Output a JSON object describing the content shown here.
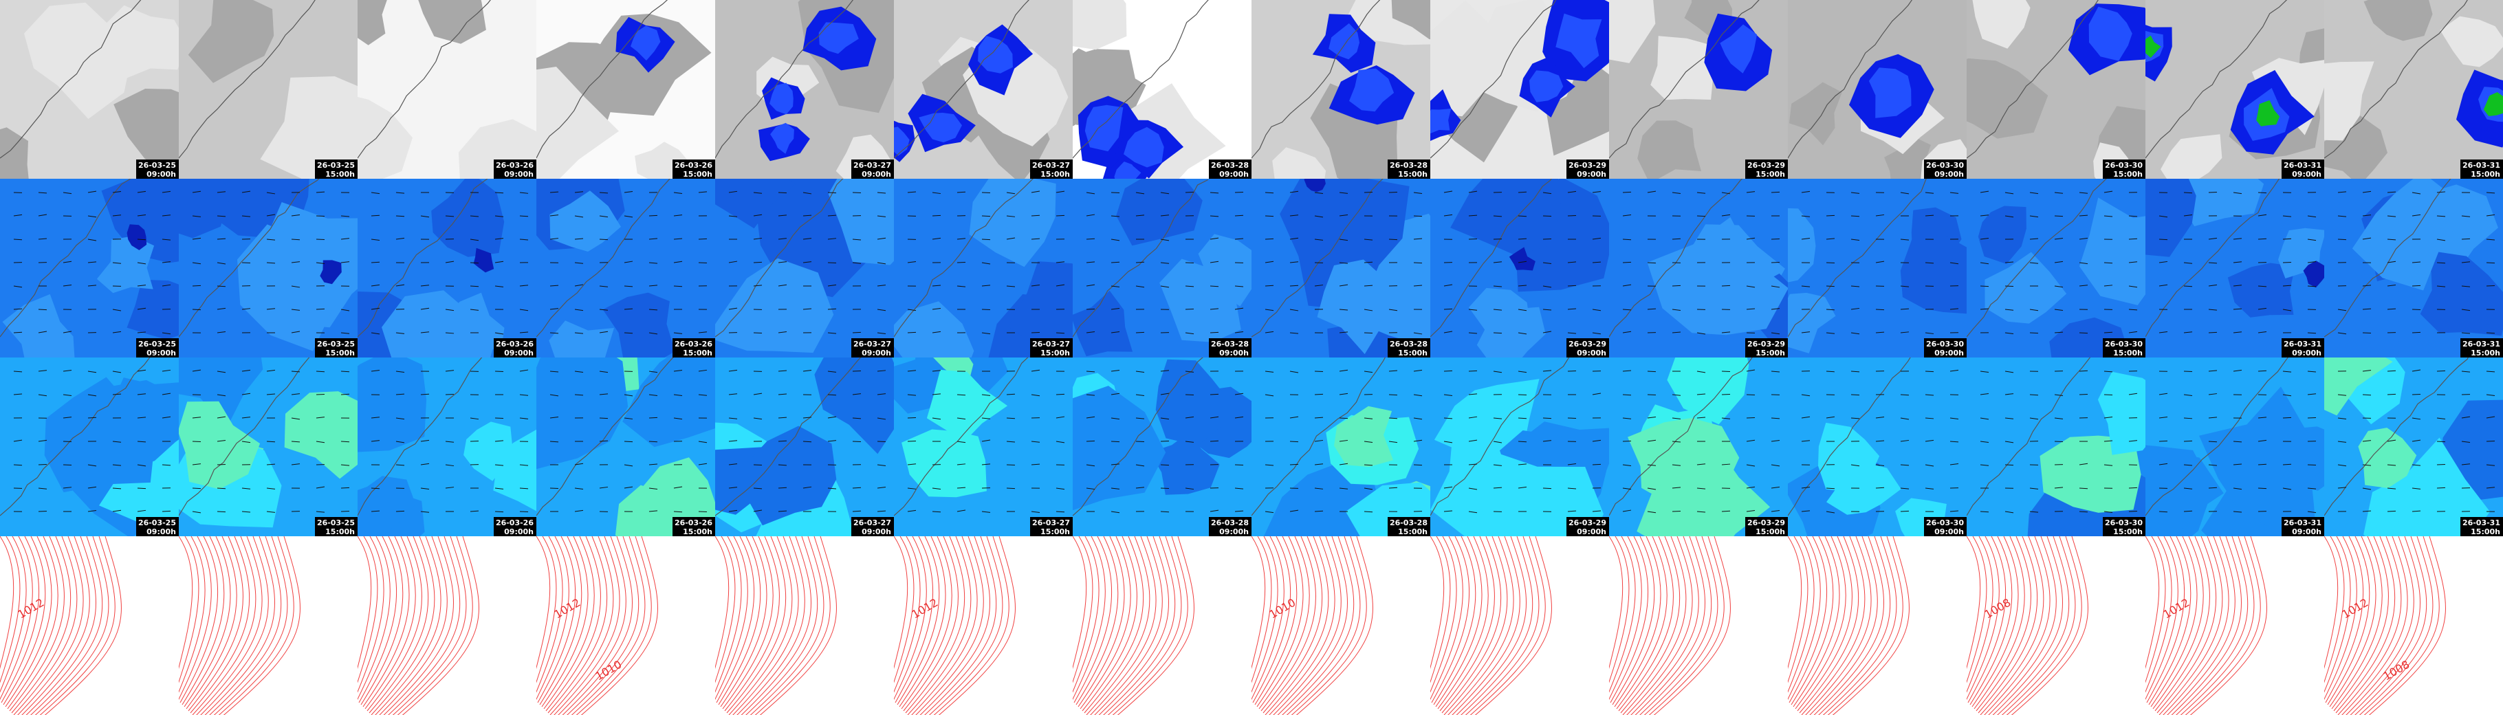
{
  "columns": [
    {
      "date": "26-03-25",
      "time": "09:00h",
      "isobar_labels": [
        "1012"
      ]
    },
    {
      "date": "26-03-25",
      "time": "15:00h",
      "isobar_labels": []
    },
    {
      "date": "26-03-26",
      "time": "09:00h",
      "isobar_labels": []
    },
    {
      "date": "26-03-26",
      "time": "15:00h",
      "isobar_labels": [
        "1012",
        "1010"
      ]
    },
    {
      "date": "26-03-27",
      "time": "09:00h",
      "isobar_labels": []
    },
    {
      "date": "26-03-27",
      "time": "15:00h",
      "isobar_labels": [
        "1012"
      ]
    },
    {
      "date": "26-03-28",
      "time": "09:00h",
      "isobar_labels": []
    },
    {
      "date": "26-03-28",
      "time": "15:00h",
      "isobar_labels": [
        "1010"
      ]
    },
    {
      "date": "26-03-29",
      "time": "09:00h",
      "isobar_labels": []
    },
    {
      "date": "26-03-29",
      "time": "15:00h",
      "isobar_labels": []
    },
    {
      "date": "26-03-30",
      "time": "09:00h",
      "isobar_labels": []
    },
    {
      "date": "26-03-30",
      "time": "15:00h",
      "isobar_labels": [
        "1008"
      ]
    },
    {
      "date": "26-03-31",
      "time": "09:00h",
      "isobar_labels": [
        "1012"
      ]
    },
    {
      "date": "26-03-31",
      "time": "15:00h",
      "isobar_labels": [
        "1012",
        "1008"
      ]
    }
  ]
}
